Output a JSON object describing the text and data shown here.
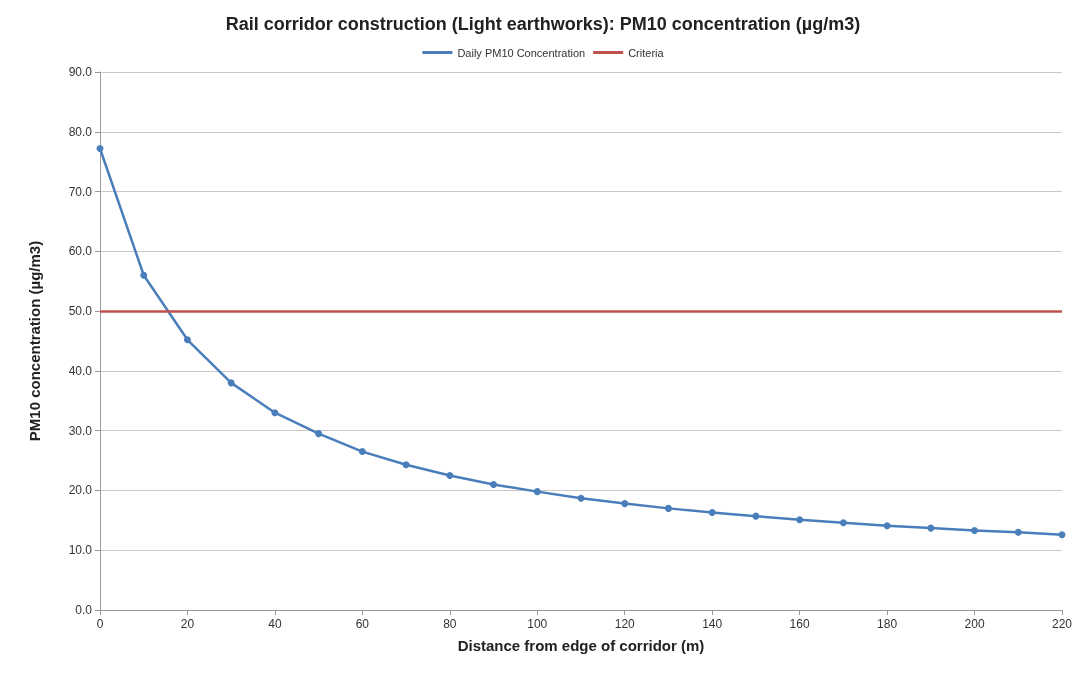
{
  "chart_data": {
    "type": "line",
    "title": "Rail corridor construction (Light earthworks): PM10 concentration (µg/m3)",
    "xlabel": "Distance from edge of corridor (m)",
    "ylabel": "PM10 concentration (µg/m3)",
    "x": [
      0,
      10,
      20,
      30,
      40,
      50,
      60,
      70,
      80,
      90,
      100,
      110,
      120,
      130,
      140,
      150,
      160,
      170,
      180,
      190,
      200,
      210,
      220
    ],
    "series": [
      {
        "name": "Daily PM10 Concentration",
        "color": "#4a7ebb",
        "values": [
          77.2,
          56.0,
          45.2,
          38.0,
          33.0,
          29.5,
          26.5,
          24.3,
          22.5,
          21.0,
          19.8,
          18.7,
          17.8,
          17.0,
          16.3,
          15.7,
          15.1,
          14.6,
          14.1,
          13.7,
          13.3,
          13.0,
          12.6
        ]
      }
    ],
    "ref_lines": [
      {
        "axis": "y",
        "value": 50,
        "label": "Criteria",
        "color": "#c0504d",
        "line_style": "solid"
      }
    ],
    "xlim": [
      0,
      220
    ],
    "xticks": [
      0,
      20,
      40,
      60,
      80,
      100,
      120,
      140,
      160,
      180,
      200,
      220
    ],
    "ylim": [
      0,
      90
    ],
    "yticks": [
      {
        "value": 0,
        "label": "0.0"
      },
      {
        "value": 10,
        "label": "10.0"
      },
      {
        "value": 20,
        "label": "20.0"
      },
      {
        "value": 30,
        "label": "30.0"
      },
      {
        "value": 40,
        "label": "40.0"
      },
      {
        "value": 50,
        "label": "50.0"
      },
      {
        "value": 60,
        "label": "60.0"
      },
      {
        "value": 70,
        "label": "70.0"
      },
      {
        "value": 80,
        "label": "80.0"
      },
      {
        "value": 90,
        "label": "90.0"
      }
    ],
    "grid": "y",
    "legend": "top",
    "marker": "circle",
    "line_style": "solid"
  }
}
